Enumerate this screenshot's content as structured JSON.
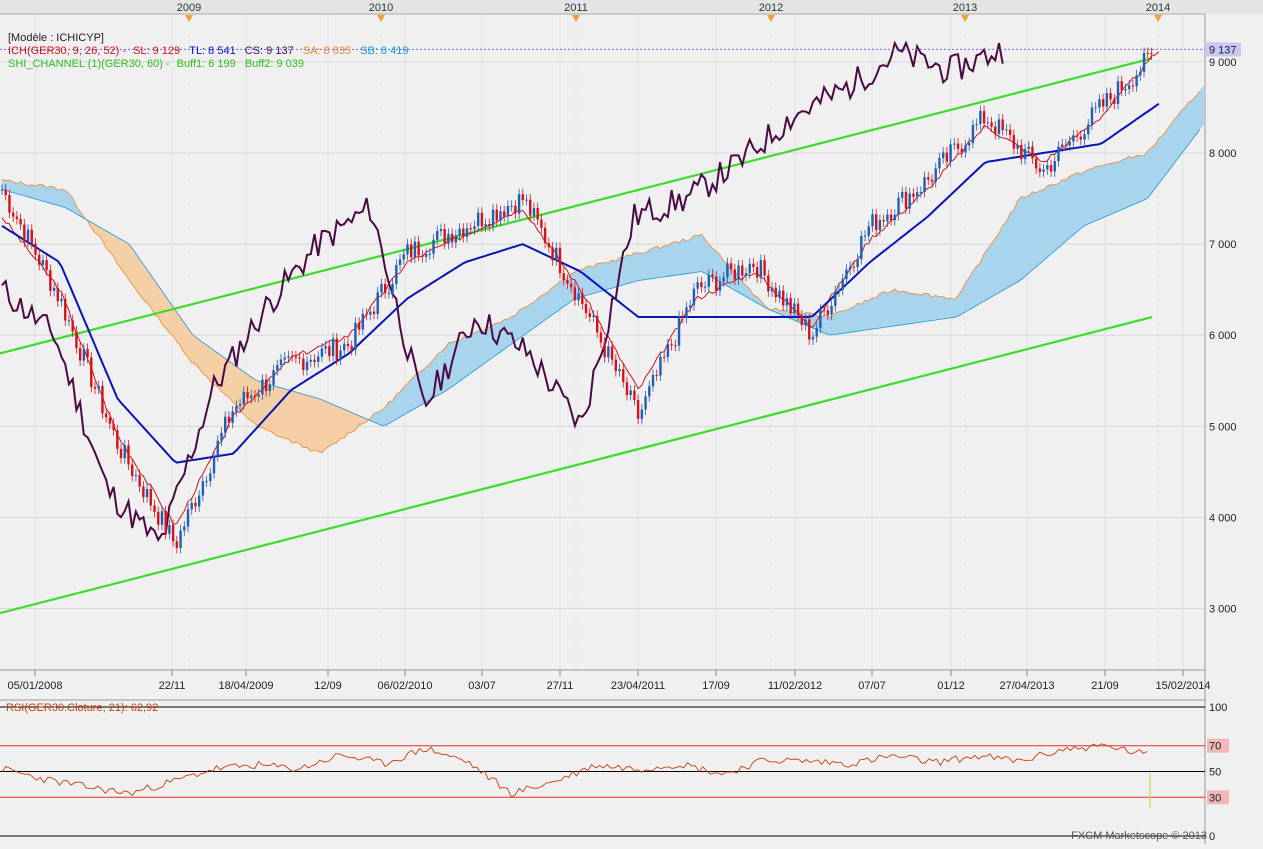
{
  "legend": {
    "model": "[Modèle : ICHICYP]",
    "ich_prefix": "ICH(GER30, 9, 26, 52) -",
    "sl": "SL: 9 129",
    "tl": "TL: 8 541",
    "cs": "CS: 9 137",
    "sa": "SA: 8 835",
    "sb": "SB: 8 419",
    "shi_prefix": "SHI_CHANNEL (1)(GER30, 60) -",
    "buff1": "Buff1: 6 199",
    "buff2": "Buff2: 9 039"
  },
  "rsi_label": "RSI(GER30.Cloture, 21): 62,92",
  "watermark": "FXCM Marketscope © 2013",
  "colors": {
    "background": "#f0f0f0",
    "grid": "#d7d7d7",
    "bull": "#1f5fb5",
    "bear": "#d4141a",
    "tenkan": "#d4141a",
    "kijun": "#0a14b4",
    "chikou": "#4a0b45",
    "channel": "#3ddc2a",
    "kumo_bull": "#a9d4ee",
    "kumo_bear": "#f5cfa6",
    "ssa_line": "#f08a2c",
    "ssb_line": "#1e9ad6",
    "rsi_line": "#c4400f",
    "current_label_bg": "#c9c9f5"
  },
  "chart_data": [
    {
      "type": "line",
      "title": "",
      "instrument": "GER30",
      "current_price": 9137,
      "current_label": "9 137",
      "year_markers": [
        "2009",
        "2010",
        "2011",
        "2012",
        "2013",
        "2014"
      ],
      "x_tick_labels": [
        "05/01/2008",
        "22/11",
        "18/04/2009",
        "12/09",
        "06/02/2010",
        "03/07",
        "27/11",
        "23/04/2011",
        "17/09",
        "11/02/2012",
        "07/07",
        "01/12",
        "27/04/2013",
        "21/09",
        "15/02/2014"
      ],
      "y_ticks": [
        "3 000",
        "4 000",
        "5 000",
        "6 000",
        "7 000",
        "8 000",
        "9 000"
      ],
      "ylim": [
        2600,
        9800
      ],
      "series": [
        {
          "name": "Candles (close)",
          "x": [
            "2008-01",
            "2008-07",
            "2008-10",
            "2009-03",
            "2009-07",
            "2010-01",
            "2010-05",
            "2010-11",
            "2011-03",
            "2011-05",
            "2011-08",
            "2011-09",
            "2012-01",
            "2012-04",
            "2012-06",
            "2012-09",
            "2013-01",
            "2013-05",
            "2013-06",
            "2013-09",
            "2013-12"
          ],
          "values": [
            7600,
            6400,
            4800,
            3700,
            5200,
            5700,
            5900,
            6900,
            7200,
            7500,
            6400,
            5100,
            6500,
            6800,
            6000,
            7200,
            7700,
            8400,
            7800,
            8500,
            9137
          ]
        },
        {
          "name": "Tenkan",
          "values": [
            7300,
            6500,
            4900,
            3900,
            5100,
            5750,
            6000,
            6800,
            7100,
            7400,
            6500,
            5400,
            6400,
            6700,
            6100,
            7050,
            7600,
            8300,
            7900,
            8400,
            9129
          ]
        },
        {
          "name": "Kijun",
          "values": [
            7200,
            6800,
            5300,
            4600,
            4700,
            5400,
            5800,
            6400,
            6800,
            7000,
            6700,
            6200,
            6200,
            6200,
            6200,
            6800,
            7300,
            7900,
            8000,
            8100,
            8541
          ]
        },
        {
          "name": "Chikou",
          "values": [
            6500,
            6000,
            4300,
            3700,
            5400,
            6300,
            7000,
            7400,
            5200,
            6200,
            5800,
            5000,
            7300,
            7500,
            7900,
            8400,
            8700,
            9100,
            8900,
            9137
          ]
        },
        {
          "name": "Senkou A",
          "values": [
            7700,
            7600,
            6600,
            5700,
            5000,
            4700,
            5200,
            5900,
            6200,
            6700,
            6900,
            7100,
            6300,
            6200,
            6500,
            6400,
            7500,
            7800,
            8000,
            8835
          ]
        },
        {
          "name": "Senkou B",
          "values": [
            7600,
            7400,
            7000,
            6000,
            5500,
            5300,
            5000,
            5400,
            5900,
            6400,
            6600,
            6700,
            6300,
            6000,
            6100,
            6200,
            6600,
            7200,
            7500,
            8419
          ]
        },
        {
          "name": "SHI channel upper",
          "values": [
            5800,
            9039
          ]
        },
        {
          "name": "SHI channel lower",
          "values": [
            2950,
            6199
          ]
        }
      ]
    },
    {
      "type": "line",
      "title": "",
      "ylim": [
        0,
        100
      ],
      "y_ticks": [
        "0",
        "30",
        "50",
        "70",
        "100"
      ],
      "levels": [
        30,
        50,
        70
      ],
      "series": [
        {
          "name": "RSI",
          "values": [
            52,
            44,
            38,
            33,
            42,
            52,
            55,
            52,
            63,
            56,
            68,
            57,
            33,
            42,
            55,
            52,
            56,
            48,
            59,
            58,
            56,
            62,
            57,
            62,
            58,
            67,
            70,
            62.92
          ]
        }
      ]
    }
  ]
}
